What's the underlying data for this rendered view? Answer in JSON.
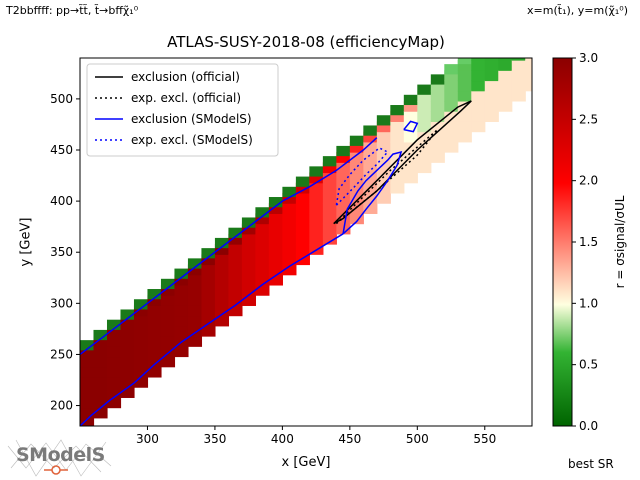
{
  "header": {
    "process_label": "T2bbffff: pp→t̃t̃, t̃→bffχ̃₁⁰",
    "axes_definition": "x=m(t̃₁), y=m(χ̃₁⁰)"
  },
  "footer": {
    "best_sr_label": "best SR",
    "logo_text": "SModelS"
  },
  "colorbar": {
    "label": "r = σsignal/σUL",
    "ticks": [
      "0.0",
      "0.5",
      "1.0",
      "1.5",
      "2.0",
      "2.5",
      "3.0"
    ],
    "range": [
      0,
      3
    ],
    "colors": [
      "#006400",
      "#90ee90",
      "#ffffe0",
      "#ff0000",
      "#8b0000"
    ]
  },
  "chart_data": {
    "type": "heatmap",
    "title": "ATLAS-SUSY-2018-08 (efficiencyMap)",
    "xlabel": "x [GeV]",
    "ylabel": "y [GeV]",
    "xlim": [
      250,
      585
    ],
    "ylim": [
      180,
      540
    ],
    "x_ticks": [
      "300",
      "350",
      "400",
      "450",
      "500",
      "550"
    ],
    "y_ticks": [
      "200",
      "250",
      "300",
      "350",
      "400",
      "450",
      "500"
    ],
    "cell_width_gev": 10,
    "cell_height_gev": 10,
    "grid_region": {
      "lower_edge_y_at_x250": 178,
      "diagonal_band_width_gev": 80,
      "upper_edge_offset_gev": 4
    },
    "legend": {
      "position": "top-left",
      "entries": [
        {
          "label": "exclusion (official)",
          "color": "#000000",
          "style": "solid"
        },
        {
          "label": "exp. excl. (official)",
          "color": "#000000",
          "style": "dotted"
        },
        {
          "label": "exclusion (SModelS)",
          "color": "#0000ff",
          "style": "solid"
        },
        {
          "label": "exp. excl. (SModelS)",
          "color": "#0000ff",
          "style": "dotted"
        }
      ]
    },
    "r_value_trend": [
      {
        "x": 260,
        "r": 3.0
      },
      {
        "x": 330,
        "r": 2.9
      },
      {
        "x": 370,
        "r": 2.4
      },
      {
        "x": 410,
        "r": 2.0
      },
      {
        "x": 440,
        "r": 1.6
      },
      {
        "x": 470,
        "r": 1.2
      },
      {
        "x": 500,
        "r": 0.9
      },
      {
        "x": 540,
        "r": 0.6
      },
      {
        "x": 570,
        "r": 0.5
      }
    ],
    "curves": {
      "official_exclusion": [
        [
          438,
          378
        ],
        [
          470,
          420
        ],
        [
          500,
          460
        ],
        [
          530,
          492
        ],
        [
          540,
          498
        ],
        [
          532,
          488
        ],
        [
          500,
          450
        ],
        [
          470,
          410
        ],
        [
          445,
          383
        ],
        [
          438,
          378
        ]
      ],
      "official_expected": [
        [
          440,
          378
        ],
        [
          470,
          410
        ],
        [
          500,
          445
        ],
        [
          515,
          470
        ],
        [
          508,
          462
        ],
        [
          480,
          430
        ],
        [
          455,
          398
        ],
        [
          440,
          378
        ]
      ],
      "smodels_exclusion_lower": [
        [
          250,
          180
        ],
        [
          258,
          190
        ],
        [
          272,
          205
        ],
        [
          290,
          222
        ],
        [
          305,
          240
        ],
        [
          325,
          262
        ],
        [
          345,
          280
        ],
        [
          365,
          298
        ],
        [
          385,
          318
        ],
        [
          405,
          336
        ],
        [
          425,
          352
        ],
        [
          445,
          368
        ]
      ],
      "smodels_exclusion_upper": [
        [
          250,
          250
        ],
        [
          262,
          262
        ],
        [
          280,
          280
        ],
        [
          300,
          300
        ],
        [
          320,
          320
        ],
        [
          340,
          340
        ],
        [
          360,
          360
        ],
        [
          380,
          380
        ],
        [
          400,
          400
        ],
        [
          420,
          414
        ],
        [
          440,
          430
        ],
        [
          460,
          450
        ],
        [
          470,
          462
        ]
      ],
      "smodels_exclusion_inner": [
        [
          445,
          368
        ],
        [
          455,
          380
        ],
        [
          462,
          392
        ],
        [
          470,
          405
        ],
        [
          478,
          420
        ],
        [
          485,
          435
        ],
        [
          488,
          448
        ],
        [
          482,
          446
        ],
        [
          478,
          440
        ],
        [
          470,
          430
        ],
        [
          462,
          420
        ],
        [
          456,
          410
        ],
        [
          448,
          392
        ],
        [
          445,
          368
        ]
      ],
      "smodels_island": [
        [
          490,
          470
        ],
        [
          495,
          478
        ],
        [
          500,
          476
        ],
        [
          497,
          468
        ],
        [
          490,
          470
        ]
      ],
      "smodels_expected": [
        [
          440,
          396
        ],
        [
          452,
          412
        ],
        [
          462,
          426
        ],
        [
          470,
          436
        ],
        [
          478,
          448
        ],
        [
          472,
          452
        ],
        [
          460,
          440
        ],
        [
          450,
          426
        ],
        [
          442,
          412
        ],
        [
          440,
          396
        ]
      ]
    }
  }
}
